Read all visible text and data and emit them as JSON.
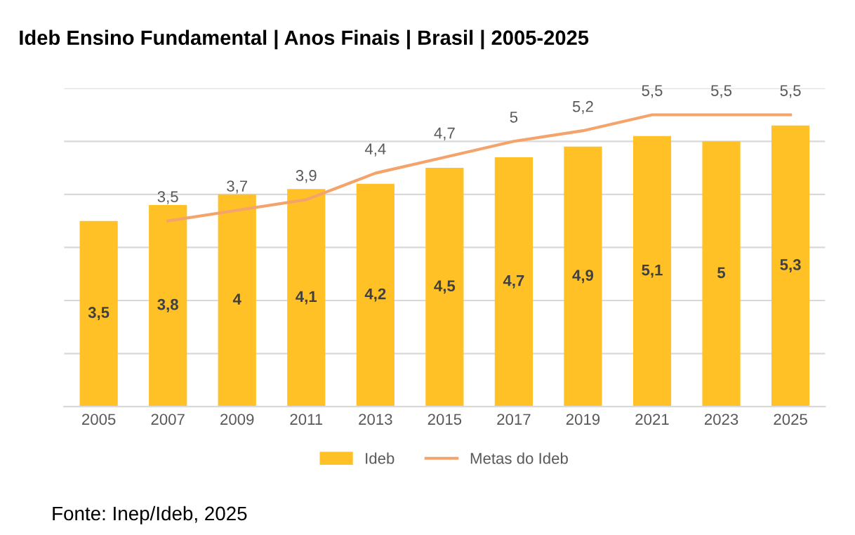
{
  "chart_data": {
    "type": "bar",
    "title": "Ideb Ensino Fundamental | Anos Finais | Brasil | 2005-2025",
    "categories": [
      "2005",
      "2007",
      "2009",
      "2011",
      "2013",
      "2015",
      "2017",
      "2019",
      "2021",
      "2023",
      "2025"
    ],
    "series": [
      {
        "name": "Ideb",
        "color": "#ffc125",
        "values": [
          3.5,
          3.8,
          4,
          4.1,
          4.2,
          4.5,
          4.7,
          4.9,
          5.1,
          5,
          5.3
        ],
        "value_labels": [
          "3,5",
          "3,8",
          "4",
          "4,1",
          "4,2",
          "4,5",
          "4,7",
          "4,9",
          "5,1",
          "5",
          "5,3"
        ]
      },
      {
        "name": "Metas do Ideb",
        "type": "line",
        "color": "#f4a36a",
        "values": [
          null,
          3.5,
          3.7,
          3.9,
          4.4,
          4.7,
          5,
          5.2,
          5.5,
          5.5,
          5.5
        ],
        "value_labels": [
          null,
          "3,5",
          "3,7",
          "3,9",
          "4,4",
          "4,7",
          "5",
          "5,2",
          "5,5",
          "5,5",
          "5,5"
        ]
      }
    ],
    "ylim": [
      0,
      6
    ],
    "yticks": [
      {
        "value": 0,
        "label": null
      },
      {
        "value": 1,
        "label": null
      },
      {
        "value": 2,
        "label": null
      },
      {
        "value": 3,
        "label": null
      },
      {
        "value": 4,
        "label": null
      },
      {
        "value": 5,
        "label": null
      },
      {
        "value": 6,
        "label": null
      }
    ],
    "tick_labels": "x",
    "grid": "y",
    "legend": "bottom",
    "annotations": [
      "Fonte: Inep/Ideb, 2025"
    ]
  }
}
